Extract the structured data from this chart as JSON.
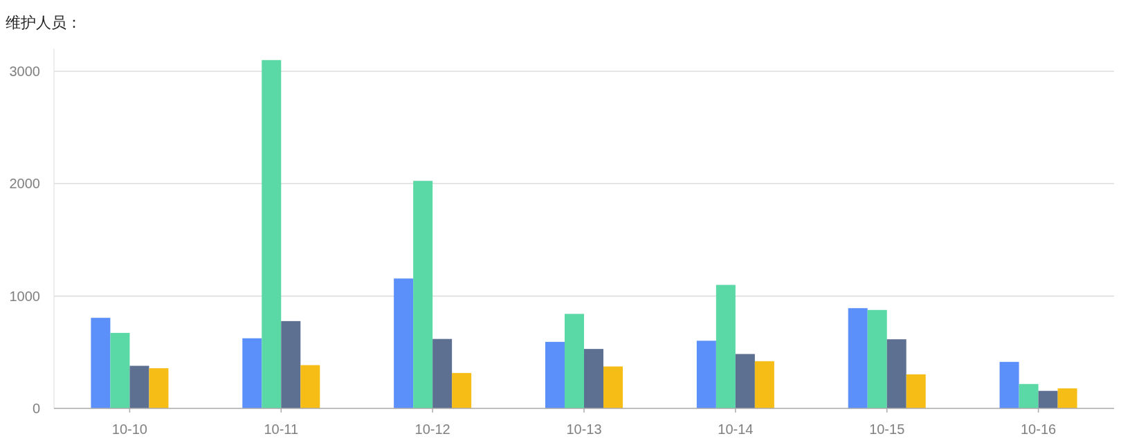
{
  "chart_data": {
    "type": "bar",
    "title": "维护人员：",
    "categories": [
      "10-10",
      "10-11",
      "10-12",
      "10-13",
      "10-14",
      "10-15",
      "10-16"
    ],
    "series": [
      {
        "color": "#5b8ff9",
        "values": [
          806,
          624,
          1156,
          592,
          602,
          892,
          414
        ]
      },
      {
        "color": "#5ad8a6",
        "values": [
          672,
          3100,
          2025,
          841,
          1099,
          876,
          217
        ]
      },
      {
        "color": "#5d7092",
        "values": [
          379,
          777,
          618,
          529,
          484,
          615,
          156
        ]
      },
      {
        "color": "#f6bd16",
        "values": [
          357,
          385,
          315,
          373,
          420,
          303,
          178
        ]
      }
    ],
    "ylim": [
      0,
      3200
    ],
    "yticks": [
      0,
      1000,
      2000,
      3000
    ],
    "grid": "y"
  }
}
